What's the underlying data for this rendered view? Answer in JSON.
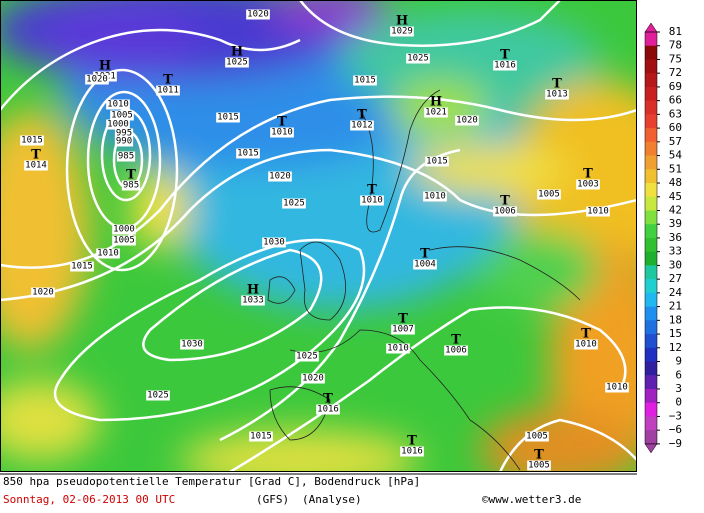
{
  "map": {
    "title": "850 hpa pseudopotentielle Temperatur [Grad C], Bodendruck [hPa]",
    "date": "Sonntag, 02-06-2013  00 UTC",
    "model": "(GFS)",
    "run": "(Analyse)",
    "credit": "©www.wetter3.de",
    "scale": [
      "81",
      "78",
      "75",
      "72",
      "69",
      "66",
      "63",
      "60",
      "57",
      "54",
      "51",
      "48",
      "45",
      "42",
      "39",
      "36",
      "33",
      "30",
      "27",
      "24",
      "21",
      "18",
      "15",
      "12",
      "9",
      "6",
      "3",
      "0",
      "−3",
      "−6",
      "−9"
    ],
    "centers": [
      {
        "symbol": "H",
        "value": "1029"
      },
      {
        "symbol": "H",
        "value": "1025"
      },
      {
        "symbol": "H",
        "value": "1021"
      },
      {
        "symbol": "T",
        "value": "1011"
      },
      {
        "symbol": "T",
        "value": "1016"
      },
      {
        "symbol": "T",
        "value": "1013"
      },
      {
        "symbol": "T",
        "value": "985"
      },
      {
        "symbol": "T",
        "value": "1014"
      },
      {
        "symbol": "T",
        "value": "1010"
      },
      {
        "symbol": "T",
        "value": "1012"
      },
      {
        "symbol": "H",
        "value": "1021"
      },
      {
        "symbol": "T",
        "value": "1010"
      },
      {
        "symbol": "T",
        "value": "1003"
      },
      {
        "symbol": "T",
        "value": "1006"
      },
      {
        "symbol": "T",
        "value": "1004"
      },
      {
        "symbol": "H",
        "value": "1033"
      },
      {
        "symbol": "T",
        "value": "1007"
      },
      {
        "symbol": "T",
        "value": "1006"
      },
      {
        "symbol": "T",
        "value": "1010"
      },
      {
        "symbol": "T",
        "value": "1016"
      },
      {
        "symbol": "T",
        "value": "1016"
      },
      {
        "symbol": "T",
        "value": "1005"
      }
    ],
    "isobar_labels": [
      "1020",
      "1020",
      "1025",
      "1015",
      "1010",
      "1005",
      "1000",
      "995",
      "990",
      "985",
      "1015",
      "1015",
      "1020",
      "1015",
      "1015",
      "1020",
      "1010",
      "1005",
      "1010",
      "1025",
      "1000",
      "1005",
      "1010",
      "1030",
      "1015",
      "1020",
      "1010",
      "1030",
      "1025",
      "1020",
      "1025",
      "1010",
      "1015",
      "1005"
    ]
  }
}
